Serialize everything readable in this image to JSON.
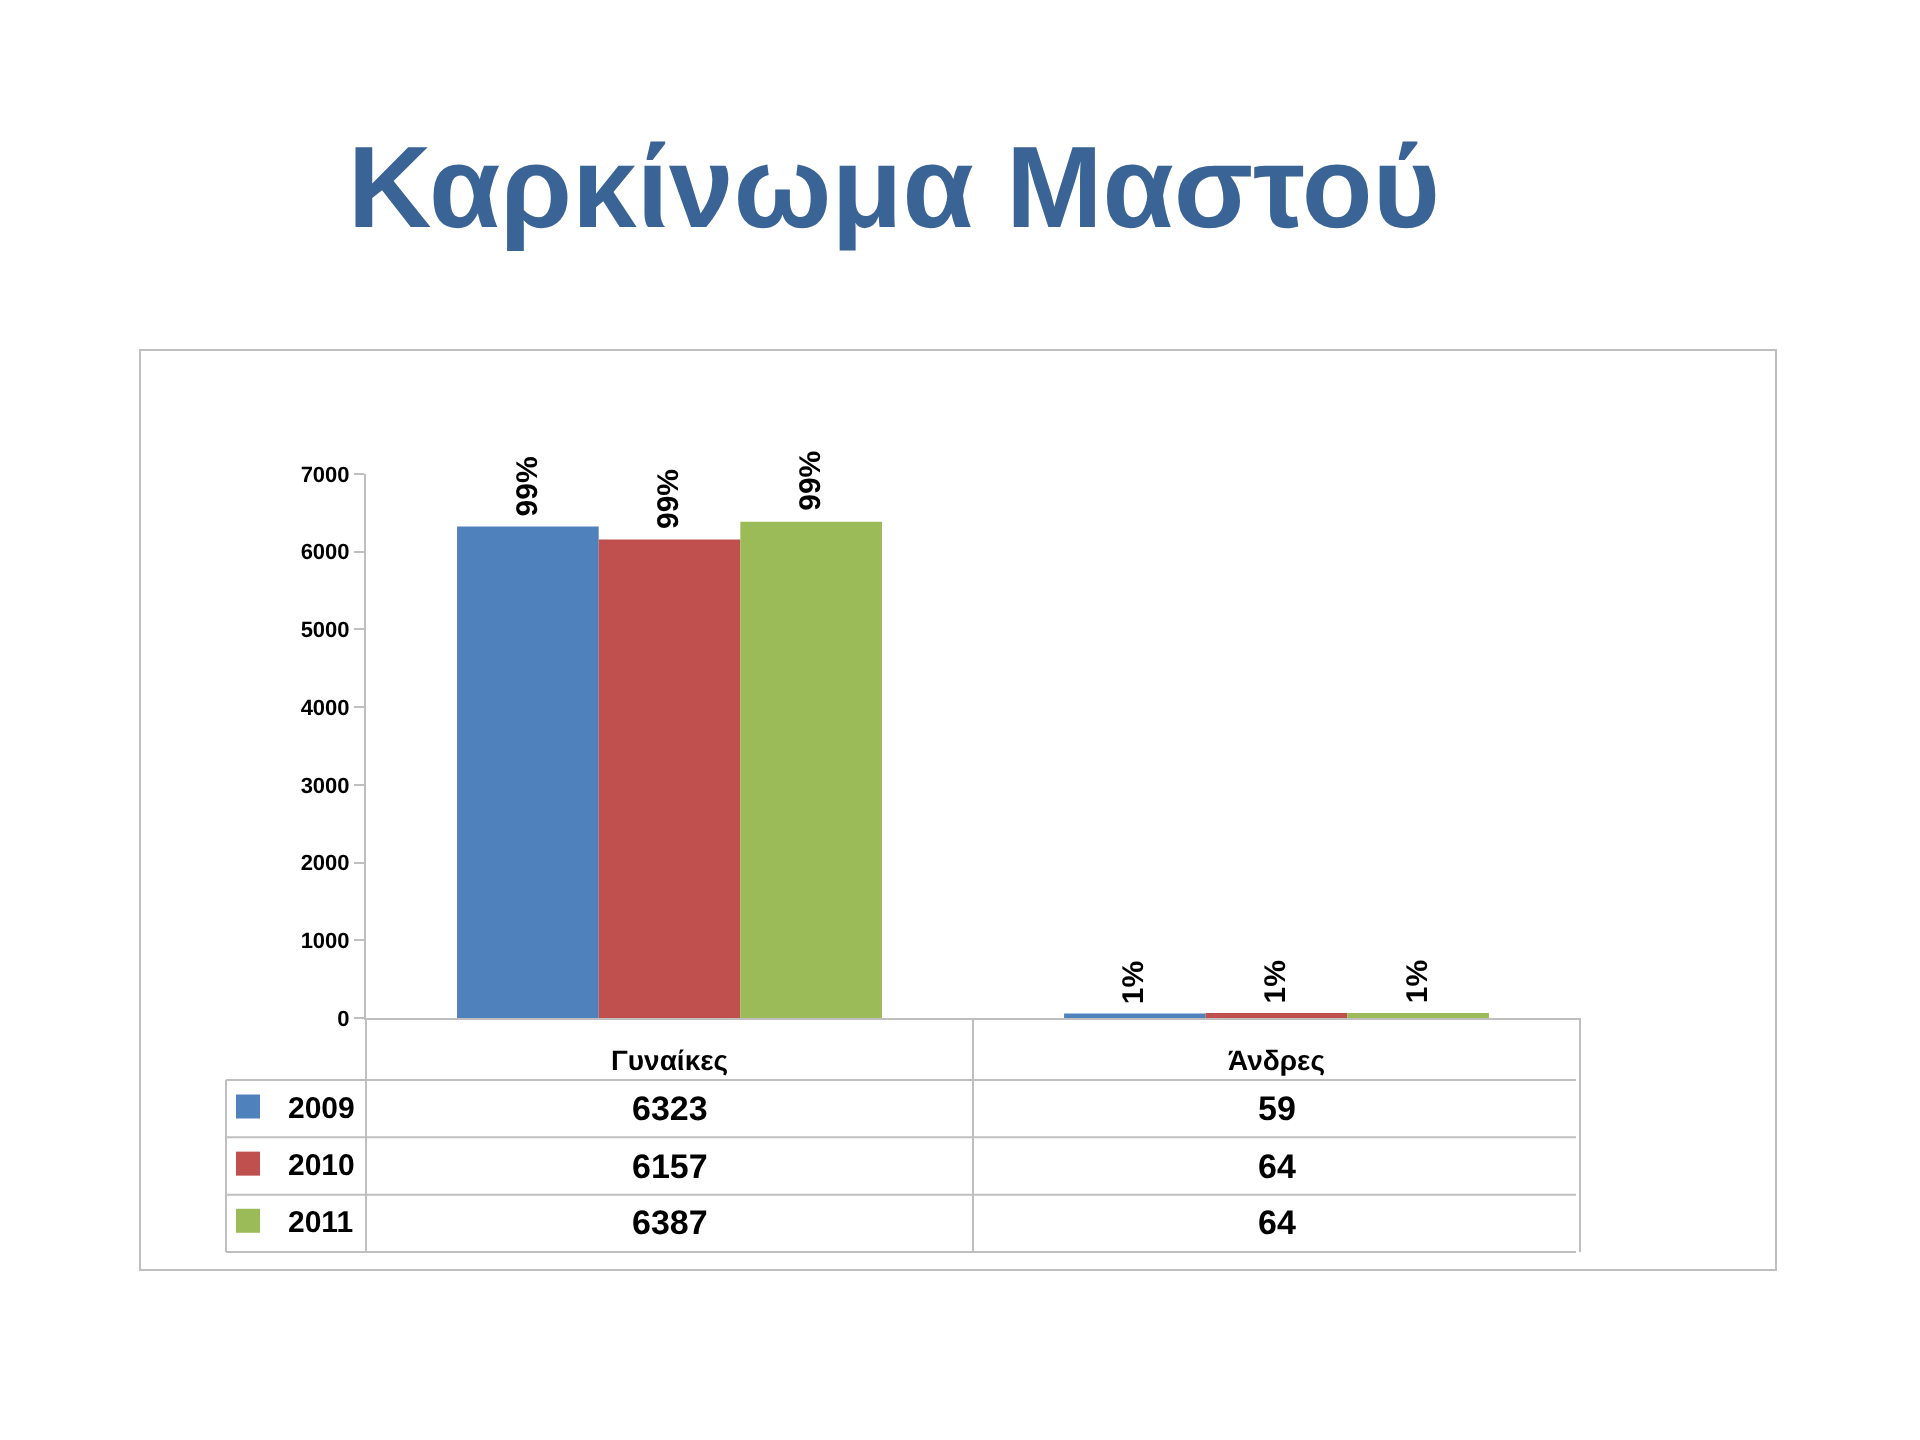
{
  "chart_data": {
    "type": "bar",
    "title": "Καρκίνωμα Μαστού",
    "categories": [
      "Γυναίκες",
      "Άνδρες"
    ],
    "series": [
      {
        "name": "2009",
        "color": "#4f81bd",
        "values": [
          6323,
          59
        ]
      },
      {
        "name": "2010",
        "color": "#c0504d",
        "values": [
          6157,
          64
        ]
      },
      {
        "name": "2011",
        "color": "#9bbb59",
        "values": [
          6387,
          64
        ]
      }
    ],
    "annotations": [
      {
        "text": "99%",
        "y": 6323
      },
      {
        "text": "99%",
        "y": 6157
      },
      {
        "text": "99%",
        "y": 6387
      },
      {
        "text": "1%",
        "y": 59
      },
      {
        "text": "1%",
        "y": 64
      },
      {
        "text": "1%",
        "y": 64
      }
    ],
    "ylim": [
      0,
      7000
    ],
    "yticks": [
      0,
      1000,
      2000,
      3000,
      4000,
      5000,
      6000,
      7000
    ],
    "grid": false,
    "legend": "bottom left",
    "data_labels": true
  }
}
